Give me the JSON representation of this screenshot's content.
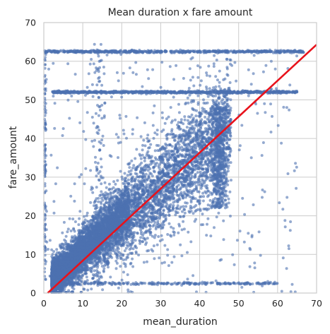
{
  "chart_data": {
    "type": "scatter",
    "title": "Mean duration x fare amount",
    "xlabel": "mean_duration",
    "ylabel": "fare_amount",
    "xlim": [
      0,
      70
    ],
    "ylim": [
      0,
      70
    ],
    "xticks": [
      "0",
      "10",
      "20",
      "30",
      "40",
      "50",
      "60",
      "70"
    ],
    "yticks": [
      "0",
      "10",
      "20",
      "30",
      "40",
      "50",
      "60",
      "70"
    ],
    "grid": true,
    "legend": "none",
    "point_color": "#4c72b0",
    "regression_color": "#e8121b",
    "regression_line": {
      "x": [
        1,
        70
      ],
      "y": [
        0,
        64.3
      ]
    },
    "clusters": [
      {
        "desc": "main diagonal cloud",
        "x_range": [
          2,
          48
        ],
        "y_center_slope": 0.87,
        "y_spread": 4.5,
        "count": 5200
      },
      {
        "desc": "dense low band",
        "x_range": [
          2,
          22
        ],
        "y_center_slope": 0.95,
        "y_spread": 2.5,
        "count": 2600
      },
      {
        "desc": "flat fare 52",
        "x_range": [
          2,
          65
        ],
        "y": 52,
        "count": 900
      },
      {
        "desc": "flat fare 62.5",
        "x_range": [
          0,
          67
        ],
        "y": 62.5,
        "count": 650
      },
      {
        "desc": "vertical band near 45",
        "x": 45,
        "y_range": [
          22,
          48
        ],
        "count": 500
      },
      {
        "desc": "vertical band near 14",
        "x": 14,
        "y_range": [
          0,
          65
        ],
        "count": 120
      },
      {
        "desc": "bottom floor",
        "x_range": [
          2,
          60
        ],
        "y": 2.5,
        "count": 250
      },
      {
        "desc": "y-axis outliers",
        "x": 0.3,
        "y_range": [
          3,
          63
        ],
        "count": 120
      },
      {
        "desc": "scattered outliers",
        "x_range": [
          0,
          65
        ],
        "y_range": [
          0,
          62
        ],
        "count": 350
      }
    ]
  }
}
